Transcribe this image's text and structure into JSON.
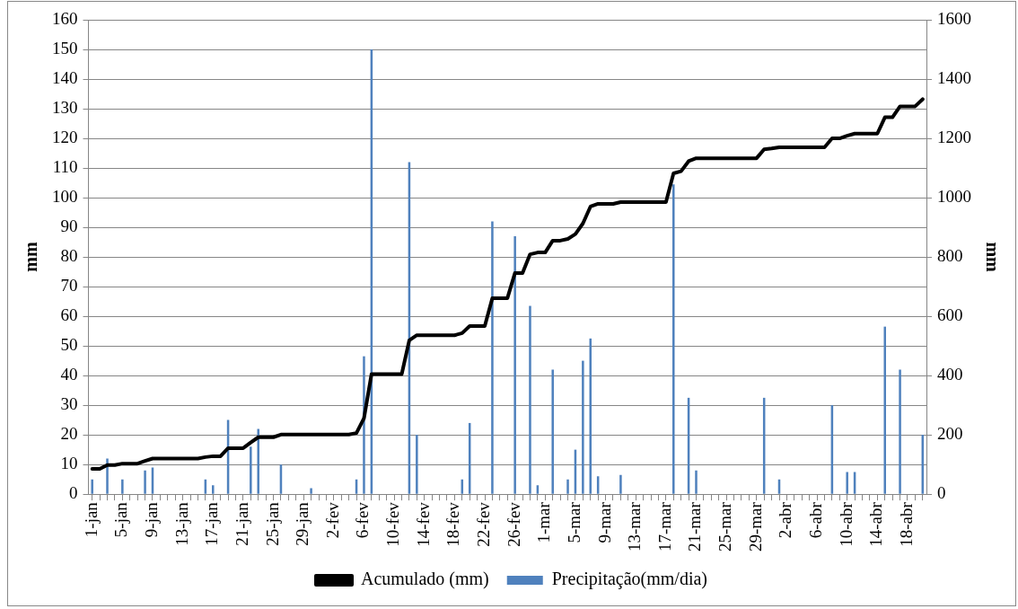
{
  "chart_data": {
    "type": "bar",
    "ylabel": "mm",
    "y2label": "mm",
    "categories": [
      "1-jan",
      null,
      null,
      null,
      "5-jan",
      null,
      null,
      null,
      "9-jan",
      null,
      null,
      null,
      "13-jan",
      null,
      null,
      null,
      "17-jan",
      null,
      null,
      null,
      "21-jan",
      null,
      null,
      null,
      "25-jan",
      null,
      null,
      null,
      "29-jan",
      null,
      null,
      null,
      "2-fev",
      null,
      null,
      null,
      "6-fev",
      null,
      null,
      null,
      "10-fev",
      null,
      null,
      null,
      "14-fev",
      null,
      null,
      null,
      "18-fev",
      null,
      null,
      null,
      "22-fev",
      null,
      null,
      null,
      "26-fev",
      null,
      null,
      null,
      "1-mar",
      null,
      null,
      null,
      "5-mar",
      null,
      null,
      null,
      "9-mar",
      null,
      null,
      null,
      "13-mar",
      null,
      null,
      null,
      "17-mar",
      null,
      null,
      null,
      "21-mar",
      null,
      null,
      null,
      "25-mar",
      null,
      null,
      null,
      "29-mar",
      null,
      null,
      null,
      "2-abr",
      null,
      null,
      null,
      "6-abr",
      null,
      null,
      null,
      "10-abr",
      null,
      null,
      null,
      "14-abr",
      null,
      null,
      null,
      "18-abr",
      null,
      null
    ],
    "series": [
      {
        "name": "Precipitação(mm/dia)",
        "color": "#4f81bd",
        "values": [
          5,
          0,
          12,
          0,
          5,
          0,
          0,
          8,
          9,
          0,
          0,
          0,
          0,
          0,
          0,
          5,
          3,
          0,
          25,
          0,
          0,
          16,
          22,
          0,
          0,
          10,
          0,
          0,
          0,
          2,
          0,
          0,
          0,
          0,
          0,
          5,
          46.5,
          150,
          0,
          0,
          0,
          0,
          112,
          20,
          0,
          0,
          0,
          0,
          0,
          5,
          24,
          0,
          0,
          92,
          0,
          0,
          87,
          0,
          63.5,
          3,
          0,
          42,
          0,
          5,
          15,
          45,
          52.5,
          6,
          0,
          0,
          6.5,
          0,
          0,
          0,
          0,
          0,
          0,
          104.5,
          0,
          32.5,
          8,
          0,
          0,
          0,
          0,
          0,
          0,
          0,
          0,
          32.5,
          0,
          5,
          0,
          0,
          0,
          0,
          0,
          0,
          30,
          0,
          7.5,
          7.5,
          0,
          0,
          0,
          56.5,
          0,
          42,
          0,
          0,
          20
        ]
      },
      {
        "name": "Acumulado (mm)",
        "type": "line",
        "axis": "y2",
        "color": "#000000",
        "values": [
          85,
          85,
          98,
          98,
          103,
          103,
          103,
          112,
          120,
          120,
          120,
          120,
          120,
          120,
          120,
          125,
          128,
          128,
          155,
          155,
          155,
          174,
          192,
          192,
          192,
          201,
          201,
          201,
          201,
          201,
          201,
          201,
          201,
          201,
          201,
          206,
          256,
          405,
          405,
          405,
          405,
          405,
          519,
          536,
          536,
          536,
          536,
          536,
          536,
          543,
          567,
          567,
          567,
          661,
          661,
          661,
          746,
          746,
          809,
          815,
          815,
          855,
          855,
          861,
          877,
          913,
          970,
          979,
          979,
          979,
          985,
          985,
          985,
          985,
          985,
          985,
          985,
          1082,
          1089,
          1123,
          1133,
          1133,
          1133,
          1133,
          1133,
          1133,
          1133,
          1133,
          1133,
          1163,
          1166,
          1170,
          1170,
          1170,
          1170,
          1170,
          1170,
          1170,
          1200,
          1200,
          1209,
          1216,
          1216,
          1216,
          1216,
          1271,
          1271,
          1308,
          1308,
          1308,
          1332
        ]
      }
    ],
    "ylim": [
      0,
      160
    ],
    "yticks": [
      0,
      10,
      20,
      30,
      40,
      50,
      60,
      70,
      80,
      90,
      100,
      110,
      120,
      130,
      140,
      150,
      160
    ],
    "y2lim": [
      0,
      1600
    ],
    "y2ticks": [
      0,
      200,
      400,
      600,
      800,
      1000,
      1200,
      1400,
      1600
    ],
    "grid": "y",
    "legend": "bottom",
    "marker": "none",
    "line_style": "solid"
  }
}
